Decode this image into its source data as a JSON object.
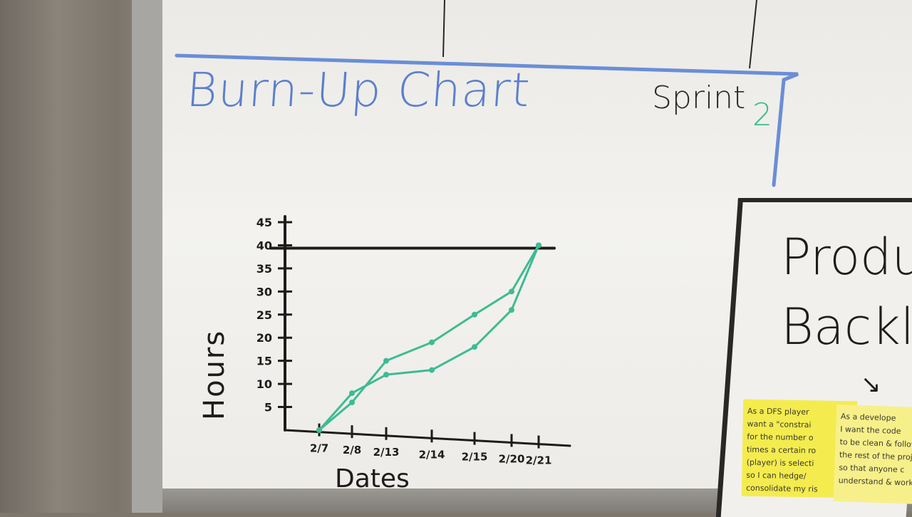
{
  "colors": {
    "marker_blue": "#5b7fcf",
    "marker_green": "#3dbb94",
    "marker_black": "#1e1c1a",
    "sticky_yellow": "#f4ec4e"
  },
  "board": {
    "title": "Burn-Up Chart",
    "sprint_label": "Sprint",
    "sprint_number": "2"
  },
  "chart_data": {
    "type": "line",
    "ylabel": "Hours",
    "xlabel": "Dates",
    "categories": [
      "2/7",
      "2/8",
      "2/13",
      "2/14",
      "2/15",
      "2/20",
      "2/21"
    ],
    "yticks": [
      "5",
      "10",
      "15",
      "20",
      "25",
      "30",
      "35",
      "40",
      "45"
    ],
    "ylim": [
      0,
      45
    ],
    "scope_line": 40,
    "series": [
      {
        "values": [
          0,
          8,
          12,
          13,
          18,
          26,
          40
        ]
      },
      {
        "values": [
          0,
          6,
          15,
          19,
          25,
          30,
          40
        ]
      }
    ]
  },
  "backlog": {
    "title": "Produ\nBacklo",
    "arrow": "↘",
    "sticky_1": "As a DFS player\nwant a \"constrai\nfor the number o\ntimes a certain ro\n(player) is selecti\nso I can hedge/\nconsolidate my ris",
    "sticky_2": "As a develope\nI want the code\nto be clean & follow\nthe rest of the proje\nso that anyone c\nunderstand & work"
  }
}
